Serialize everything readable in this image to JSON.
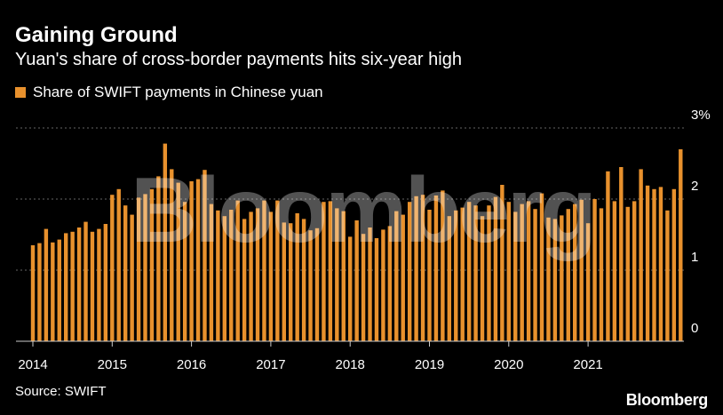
{
  "header": {
    "title": "Gaining Ground",
    "subtitle": "Yuan's share of cross-border payments hits six-year high"
  },
  "legend": {
    "label": "Share of SWIFT payments in Chinese yuan"
  },
  "footer": {
    "source": "Source: SWIFT",
    "brand": "Bloomberg"
  },
  "watermark": "Bloomberg",
  "colors": {
    "bar": "#e8912d",
    "background": "#000000",
    "grid": "#666666",
    "text": "#ffffff"
  },
  "chart_data": {
    "type": "bar",
    "title": "Gaining Ground",
    "subtitle": "Yuan's share of cross-border payments hits six-year high",
    "series": [
      {
        "name": "Share of SWIFT payments in Chinese yuan",
        "values": [
          1.35,
          1.38,
          1.58,
          1.39,
          1.43,
          1.52,
          1.54,
          1.6,
          1.68,
          1.54,
          1.58,
          1.65,
          2.06,
          2.14,
          1.91,
          1.78,
          2.02,
          2.07,
          2.14,
          2.32,
          2.78,
          2.42,
          2.23,
          1.96,
          2.25,
          2.28,
          2.41,
          1.93,
          1.84,
          1.76,
          1.85,
          1.98,
          1.72,
          1.82,
          1.87,
          1.98,
          1.82,
          1.98,
          1.67,
          1.66,
          1.8,
          1.72,
          1.56,
          1.59,
          1.96,
          1.97,
          1.87,
          1.83,
          1.47,
          1.7,
          1.51,
          1.6,
          1.45,
          1.57,
          1.62,
          1.83,
          1.78,
          1.96,
          2.04,
          2.06,
          1.85,
          2.05,
          2.12,
          1.76,
          1.84,
          1.88,
          1.96,
          1.91,
          1.76,
          1.91,
          2.03,
          2.2,
          1.96,
          1.82,
          1.93,
          1.97,
          1.86,
          2.08,
          1.74,
          1.72,
          1.77,
          1.86,
          1.93,
          1.99,
          1.66,
          2.0,
          1.87,
          2.39,
          1.97,
          2.45,
          1.89,
          1.97,
          2.42,
          2.19,
          2.14,
          2.17,
          1.84,
          2.14,
          2.7
        ]
      }
    ],
    "x_start_year": 2014,
    "x_ticks": [
      "2014",
      "2015",
      "2016",
      "2017",
      "2018",
      "2019",
      "2020",
      "2021"
    ],
    "y_ticks": [
      "0",
      "1",
      "2",
      "3%"
    ],
    "ylim": [
      0,
      3
    ],
    "grid": true,
    "legend_position": "top-left"
  }
}
